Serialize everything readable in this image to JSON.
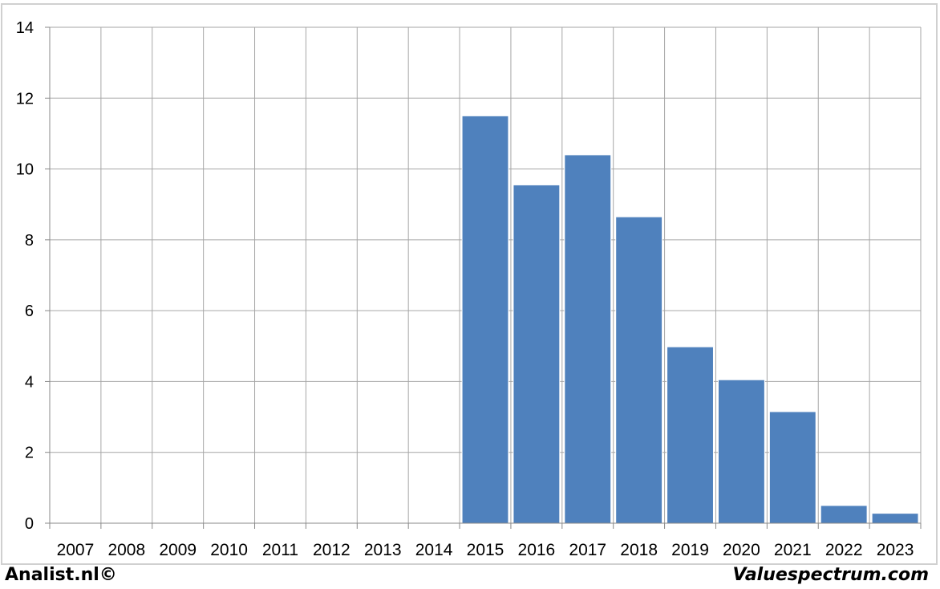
{
  "chart_data": {
    "type": "bar",
    "categories": [
      "2007",
      "2008",
      "2009",
      "2010",
      "2011",
      "2012",
      "2013",
      "2014",
      "2015",
      "2016",
      "2017",
      "2018",
      "2019",
      "2020",
      "2021",
      "2022",
      "2023"
    ],
    "values": [
      null,
      null,
      null,
      null,
      null,
      null,
      null,
      null,
      11.5,
      9.55,
      10.4,
      8.65,
      4.98,
      4.05,
      3.15,
      0.5,
      0.28
    ],
    "title": "",
    "xlabel": "",
    "ylabel": "",
    "ylim": [
      0,
      14
    ],
    "yticks": [
      0,
      2,
      4,
      6,
      8,
      10,
      12,
      14
    ],
    "grid": true,
    "bar_color": "#4f81bd",
    "grid_color": "#a6a6a6"
  },
  "footer": {
    "left": "Analist.nl©",
    "right": "Valuespectrum.com"
  }
}
